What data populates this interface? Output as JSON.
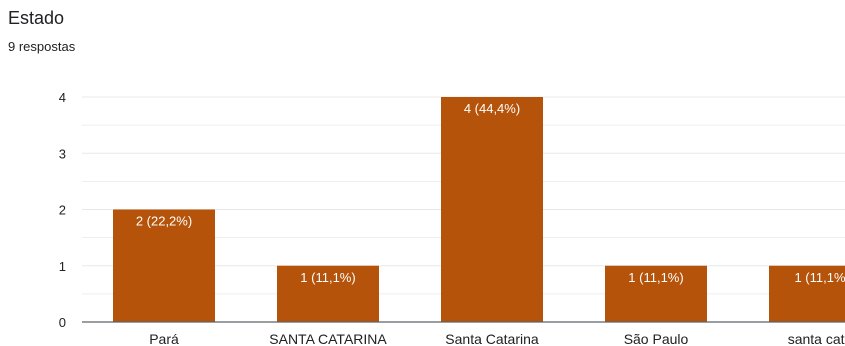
{
  "header": {
    "title": "Estado",
    "subtitle": "9 respostas"
  },
  "chart_data": {
    "type": "bar",
    "categories": [
      "Pará",
      "SANTA CATARINA",
      "Santa Catarina",
      "São Paulo",
      "santa cata"
    ],
    "values": [
      2,
      1,
      4,
      1,
      1
    ],
    "data_labels": [
      "2 (22,2%)",
      "1 (11,1%)",
      "4 (44,4%)",
      "1 (11,1%)",
      "1 (11,1%"
    ],
    "y_ticks": [
      "0",
      "1",
      "2",
      "3",
      "4"
    ],
    "ylim": [
      0,
      4
    ],
    "grid": true,
    "colors": {
      "bar": "#b45309",
      "grid": "#e8e8e8",
      "axis": "#5f6368"
    }
  }
}
